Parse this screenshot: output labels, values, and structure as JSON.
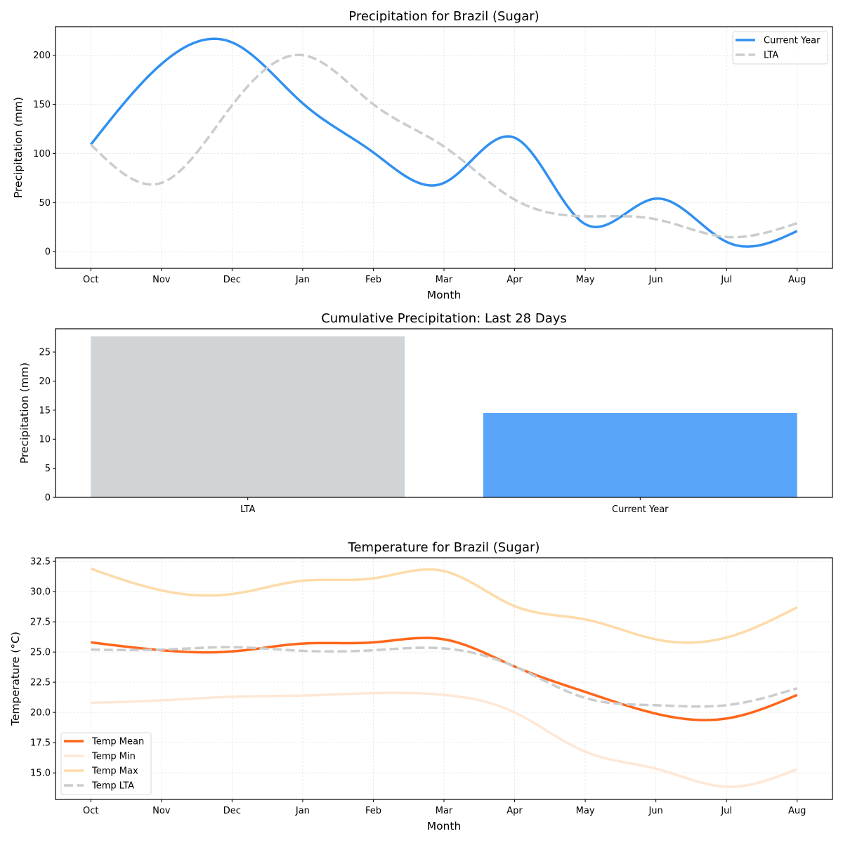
{
  "colors": {
    "current_year": "#3190F0",
    "lta_line": "#C9CDD0",
    "lta_bar": "#D0D4D7",
    "current_bar": "#59A5FA",
    "temp_mean": "#FF661A",
    "temp_min": "#FEE7D5",
    "temp_max": "#FDDBA8",
    "temp_lta": "#C9CDD0",
    "grid": "#E6E6E6"
  },
  "chart_data": [
    {
      "type": "line",
      "title": "Precipitation for Brazil (Sugar)",
      "xlabel": "Month",
      "ylabel": "Precipitation (mm)",
      "categories": [
        "Oct",
        "Nov",
        "Dec",
        "Jan",
        "Feb",
        "Mar",
        "Apr",
        "May",
        "Jun",
        "Jul",
        "Aug"
      ],
      "xlim": [
        -0.5,
        10.5
      ],
      "ylim": [
        -17,
        229
      ],
      "yticks": [
        0,
        50,
        100,
        150,
        200
      ],
      "ytick_labels": [
        "0",
        "50",
        "100",
        "150",
        "200"
      ],
      "grid": true,
      "legend": "top-right",
      "series": [
        {
          "name": "Current Year",
          "style": "solid",
          "values": [
            109,
            191,
            213,
            151,
            101,
            70,
            116,
            28,
            54,
            10,
            21
          ]
        },
        {
          "name": "LTA",
          "style": "dashed",
          "values": [
            109,
            70,
            149,
            200,
            150,
            107,
            53,
            36,
            33,
            15,
            29
          ]
        }
      ]
    },
    {
      "type": "bar",
      "title": "Cumulative Precipitation: Last 28 Days",
      "xlabel": "",
      "ylabel": "Precipitation (mm)",
      "categories": [
        "LTA",
        "Current Year"
      ],
      "values": [
        27.7,
        14.5
      ],
      "ylim": [
        0,
        29
      ],
      "yticks": [
        0,
        5,
        10,
        15,
        20,
        25
      ],
      "ytick_labels": [
        "0",
        "5",
        "10",
        "15",
        "20",
        "25"
      ],
      "grid": false
    },
    {
      "type": "line",
      "title": "Temperature for Brazil (Sugar)",
      "xlabel": "Month",
      "ylabel": "Temperature (°C)",
      "categories": [
        "Oct",
        "Nov",
        "Dec",
        "Jan",
        "Feb",
        "Mar",
        "Apr",
        "May",
        "Jun",
        "Jul",
        "Aug"
      ],
      "xlim": [
        -0.5,
        10.5
      ],
      "ylim": [
        12.8,
        32.8
      ],
      "yticks": [
        15.0,
        17.5,
        20.0,
        22.5,
        25.0,
        27.5,
        30.0,
        32.5
      ],
      "ytick_labels": [
        "15.0",
        "17.5",
        "20.0",
        "22.5",
        "25.0",
        "27.5",
        "30.0",
        "32.5"
      ],
      "grid": true,
      "legend": "bottom-left",
      "series": [
        {
          "name": "Temp Mean",
          "style": "solid",
          "values": [
            25.8,
            25.15,
            25.05,
            25.7,
            25.8,
            26.05,
            23.8,
            21.7,
            19.9,
            19.5,
            21.45
          ]
        },
        {
          "name": "Temp Min",
          "style": "solid",
          "values": [
            20.8,
            21.0,
            21.3,
            21.4,
            21.6,
            21.45,
            20.0,
            16.75,
            15.35,
            13.85,
            15.3
          ]
        },
        {
          "name": "Temp Max",
          "style": "solid",
          "values": [
            31.9,
            30.1,
            29.8,
            30.9,
            31.1,
            31.7,
            28.8,
            27.7,
            26.05,
            26.2,
            28.7
          ]
        },
        {
          "name": "Temp LTA",
          "style": "dashed",
          "values": [
            25.2,
            25.2,
            25.4,
            25.1,
            25.15,
            25.3,
            23.8,
            21.2,
            20.6,
            20.6,
            22.0
          ]
        }
      ]
    }
  ]
}
